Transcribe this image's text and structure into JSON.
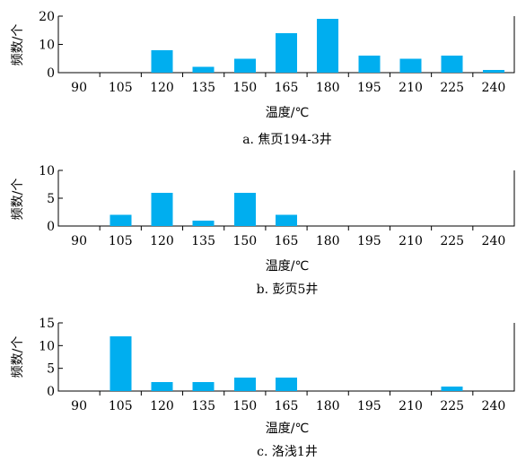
{
  "colors": {
    "bar": "#00aeef",
    "axis": "#000000"
  },
  "chart_data": [
    {
      "type": "bar",
      "caption": "a. 焦页194-3井",
      "xlabel": "温度/℃",
      "ylabel": "频数/个",
      "categories": [
        "90",
        "105",
        "120",
        "135",
        "150",
        "165",
        "180",
        "195",
        "210",
        "225",
        "240"
      ],
      "values": [
        0,
        0,
        8,
        2,
        5,
        14,
        19,
        6,
        5,
        6,
        1
      ],
      "yticks": [
        0,
        10,
        20
      ],
      "ylim": [
        0,
        20
      ],
      "grid": false
    },
    {
      "type": "bar",
      "caption": "b. 彭页5井",
      "xlabel": "温度/℃",
      "ylabel": "频数/个",
      "categories": [
        "90",
        "105",
        "120",
        "135",
        "150",
        "165",
        "180",
        "195",
        "210",
        "225",
        "240"
      ],
      "values": [
        0,
        2,
        6,
        1,
        6,
        2,
        0,
        0,
        0,
        0,
        0
      ],
      "yticks": [
        0,
        5,
        10
      ],
      "ylim": [
        0,
        10
      ],
      "grid": false
    },
    {
      "type": "bar",
      "caption": "c. 洛浅1井",
      "xlabel": "温度/℃",
      "ylabel": "频数/个",
      "categories": [
        "90",
        "105",
        "120",
        "135",
        "150",
        "165",
        "180",
        "195",
        "210",
        "225",
        "240"
      ],
      "values": [
        0,
        12,
        2,
        2,
        3,
        3,
        0,
        0,
        0,
        1,
        0
      ],
      "yticks": [
        0,
        5,
        10,
        15
      ],
      "ylim": [
        0,
        15
      ],
      "grid": false
    }
  ]
}
